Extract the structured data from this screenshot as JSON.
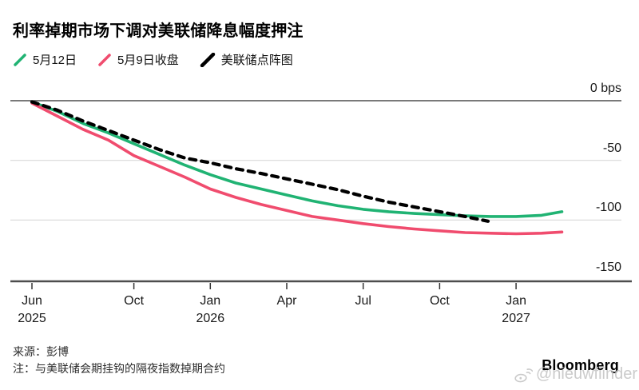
{
  "title": "利率掉期市场下调对美联储降息幅度押注",
  "legend": {
    "items": [
      {
        "label": "5月12日",
        "color": "#20b373",
        "style": "solid"
      },
      {
        "label": "5月9日收盘",
        "color": "#f04c6e",
        "style": "solid"
      },
      {
        "label": "美联储点阵图",
        "color": "#000000",
        "style": "dashed"
      }
    ]
  },
  "chart_data": {
    "type": "line",
    "unit": "bps",
    "ylim": [
      -150,
      0
    ],
    "grid": "horizontal",
    "legend_position": "top-left",
    "yticks": [
      {
        "label": "0 bps",
        "value": 0
      },
      {
        "label": "-50",
        "value": -50
      },
      {
        "label": "-100",
        "value": -100
      },
      {
        "label": "-150",
        "value": -150
      }
    ],
    "xticks": [
      {
        "label": "Jun",
        "year": "2025",
        "month": 0
      },
      {
        "label": "Oct",
        "year": "",
        "month": 4
      },
      {
        "label": "Jan",
        "year": "2026",
        "month": 7
      },
      {
        "label": "Apr",
        "year": "",
        "month": 10
      },
      {
        "label": "Jul",
        "year": "",
        "month": 13
      },
      {
        "label": "Oct",
        "year": "",
        "month": 16
      },
      {
        "label": "Jan",
        "year": "2027",
        "month": 19
      }
    ],
    "x_axis_note": "months from Jun 2025",
    "series": [
      {
        "name": "5月12日",
        "color": "#20b373",
        "dash": false,
        "points": [
          [
            0,
            -1
          ],
          [
            1,
            -9
          ],
          [
            2,
            -19
          ],
          [
            3,
            -27
          ],
          [
            4,
            -36
          ],
          [
            5,
            -45
          ],
          [
            6,
            -54
          ],
          [
            7,
            -62
          ],
          [
            8,
            -69
          ],
          [
            9,
            -74
          ],
          [
            10,
            -79
          ],
          [
            11,
            -84
          ],
          [
            12,
            -88
          ],
          [
            13,
            -91
          ],
          [
            14,
            -93
          ],
          [
            15,
            -94.5
          ],
          [
            16,
            -95.5
          ],
          [
            17,
            -96.5
          ],
          [
            18,
            -97
          ],
          [
            19,
            -97
          ],
          [
            20,
            -96
          ],
          [
            20.8,
            -93
          ]
        ]
      },
      {
        "name": "5月9日收盘",
        "color": "#f04c6e",
        "dash": false,
        "points": [
          [
            0,
            -2
          ],
          [
            1,
            -13
          ],
          [
            2,
            -24
          ],
          [
            3,
            -33
          ],
          [
            4,
            -46
          ],
          [
            5,
            -55
          ],
          [
            6,
            -64
          ],
          [
            7,
            -74
          ],
          [
            8,
            -81
          ],
          [
            9,
            -87
          ],
          [
            10,
            -92
          ],
          [
            11,
            -97
          ],
          [
            12,
            -100
          ],
          [
            13,
            -103
          ],
          [
            14,
            -105.5
          ],
          [
            15,
            -107.5
          ],
          [
            16,
            -109
          ],
          [
            17,
            -110.5
          ],
          [
            18,
            -111
          ],
          [
            19,
            -111.5
          ],
          [
            20,
            -111
          ],
          [
            20.8,
            -110
          ]
        ]
      },
      {
        "name": "美联储点阵图",
        "color": "#000000",
        "dash": true,
        "points": [
          [
            0,
            -1
          ],
          [
            1,
            -8
          ],
          [
            2,
            -17
          ],
          [
            3,
            -25
          ],
          [
            4,
            -33
          ],
          [
            5,
            -41
          ],
          [
            6,
            -48
          ],
          [
            7,
            -52
          ],
          [
            8,
            -57
          ],
          [
            9,
            -61
          ],
          [
            10,
            -65.5
          ],
          [
            11,
            -70
          ],
          [
            12,
            -74.5
          ],
          [
            13,
            -80
          ],
          [
            14,
            -85
          ],
          [
            15,
            -89
          ],
          [
            16,
            -93
          ],
          [
            17,
            -97
          ],
          [
            17.9,
            -101
          ]
        ]
      }
    ]
  },
  "footer": {
    "source": "来源：彭博",
    "note": "注：与美联储会期挂钩的隔夜指数掉期合约"
  },
  "branding": {
    "logo": "Bloomberg",
    "watermark": "@nieuwfiinder"
  }
}
